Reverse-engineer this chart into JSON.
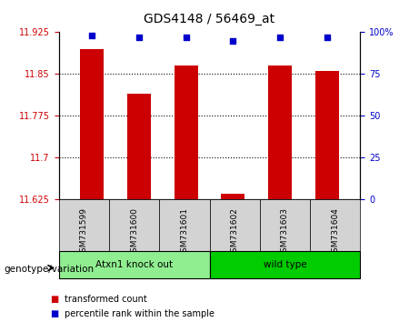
{
  "title": "GDS4148 / 56469_at",
  "samples": [
    "GSM731599",
    "GSM731600",
    "GSM731601",
    "GSM731602",
    "GSM731603",
    "GSM731604"
  ],
  "bar_values": [
    11.895,
    11.815,
    11.865,
    11.635,
    11.865,
    11.855
  ],
  "percentile_values": [
    98,
    97,
    97,
    95,
    97,
    97
  ],
  "bar_color": "#cc0000",
  "percentile_color": "#0000cc",
  "ylim_left": [
    11.625,
    11.925
  ],
  "ylim_right": [
    0,
    100
  ],
  "yticks_left": [
    11.625,
    11.7,
    11.775,
    11.85,
    11.925
  ],
  "yticks_right": [
    0,
    25,
    50,
    75,
    100
  ],
  "ytick_labels_left": [
    "11.625",
    "11.7",
    "11.775",
    "11.85",
    "11.925"
  ],
  "ytick_labels_right": [
    "0",
    "25",
    "50",
    "75",
    "100%"
  ],
  "groups": [
    {
      "label": "Atxn1 knock out",
      "indices": [
        0,
        1,
        2
      ],
      "color": "#90ee90"
    },
    {
      "label": "wild type",
      "indices": [
        3,
        4,
        5
      ],
      "color": "#00cc00"
    }
  ],
  "group_label": "genotype/variation",
  "legend_items": [
    {
      "label": "transformed count",
      "color": "#cc0000"
    },
    {
      "label": "percentile rank within the sample",
      "color": "#0000cc"
    }
  ],
  "bar_width": 0.5,
  "background_color": "#ffffff",
  "plot_bg_color": "#ffffff",
  "grid_color": "#000000",
  "base_value": 11.625
}
